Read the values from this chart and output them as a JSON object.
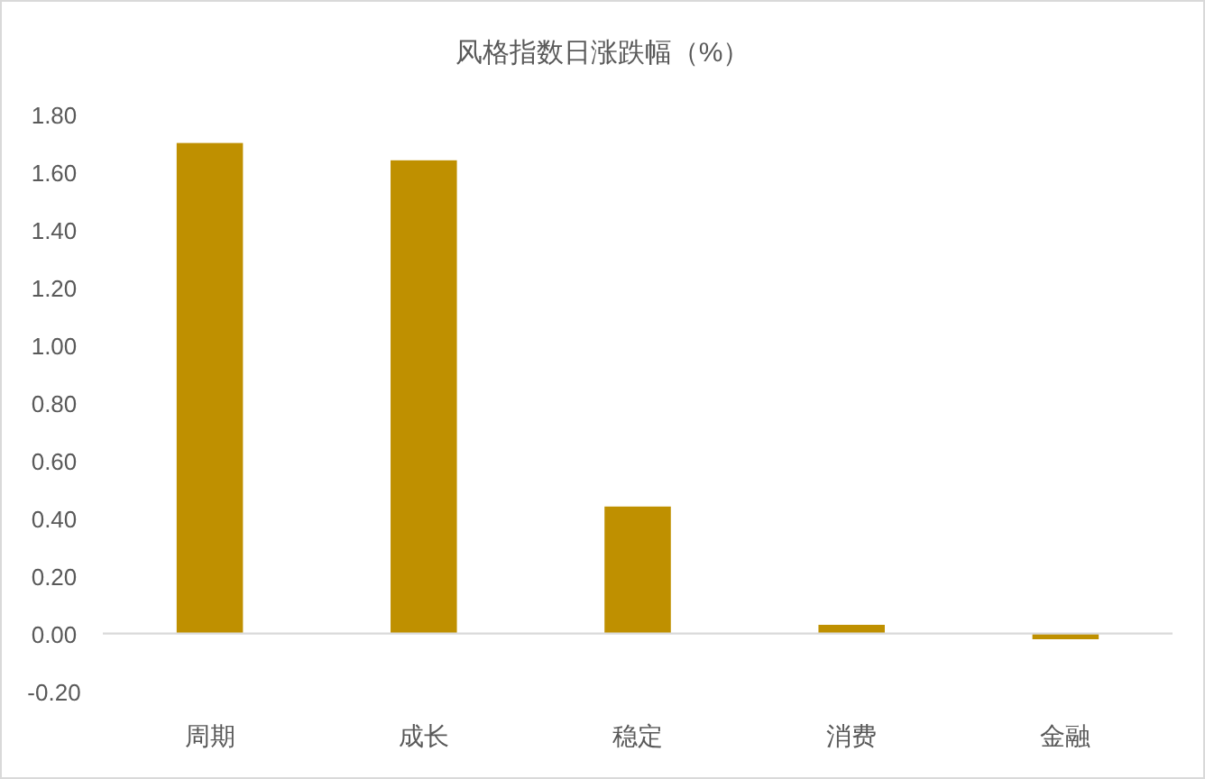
{
  "chart_data": {
    "type": "bar",
    "title": "风格指数日涨跌幅（%）",
    "categories": [
      "周期",
      "成长",
      "稳定",
      "消费",
      "金融"
    ],
    "values": [
      1.7,
      1.64,
      0.44,
      0.03,
      -0.02
    ],
    "color": "#bf9000",
    "ylim": [
      -0.2,
      1.8
    ],
    "yticks": [
      {
        "value": -0.2,
        "label": "-0.20"
      },
      {
        "value": 0,
        "label": "0.00"
      },
      {
        "value": 0.2,
        "label": "0.20"
      },
      {
        "value": 0.4,
        "label": "0.40"
      },
      {
        "value": 0.6,
        "label": "0.60"
      },
      {
        "value": 0.8,
        "label": "0.80"
      },
      {
        "value": 1.0,
        "label": "1.00"
      },
      {
        "value": 1.2,
        "label": "1.20"
      },
      {
        "value": 1.4,
        "label": "1.40"
      },
      {
        "value": 1.6,
        "label": "1.60"
      },
      {
        "value": 1.8,
        "label": "1.80"
      }
    ],
    "orientation": "vertical"
  }
}
